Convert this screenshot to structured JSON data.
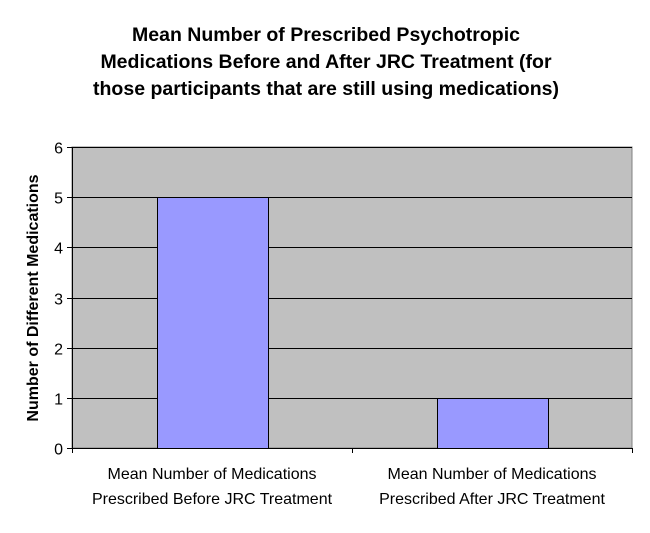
{
  "chart_data": {
    "type": "bar",
    "title_lines": [
      "Mean Number of Prescribed Psychotropic",
      "Medications Before and After JRC Treatment (for",
      "those participants that are still using medications)"
    ],
    "ylabel": "Number of Different Medications",
    "xlabel": "",
    "categories": [
      [
        "Mean Number of Medications",
        "Prescribed Before JRC Treatment"
      ],
      [
        "Mean Number of Medications",
        "Prescribed After JRC Treatment"
      ]
    ],
    "values": [
      5,
      1
    ],
    "ylim": [
      0,
      6
    ],
    "yticks": [
      "0",
      "1",
      "2",
      "3",
      "4",
      "5",
      "6"
    ],
    "grid": true,
    "legend": "none",
    "colors": {
      "plot_background": "#c0c0c0",
      "bar_fill": "#9999ff",
      "bar_stroke": "#000000",
      "gridline": "#000000",
      "axis": "#000000",
      "text": "#000000"
    }
  }
}
